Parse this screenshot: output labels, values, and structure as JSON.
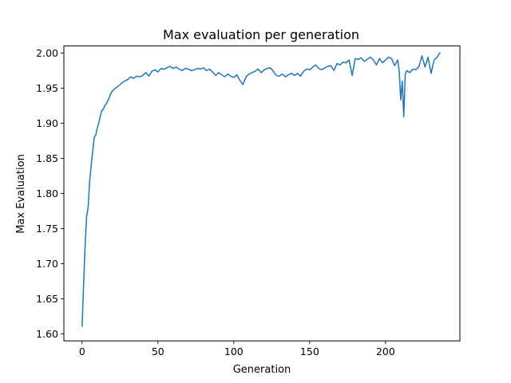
{
  "chart_data": {
    "type": "line",
    "title": "Max evaluation per generation",
    "xlabel": "Generation",
    "ylabel": "Max Evaluation",
    "xlim": [
      -12,
      249
    ],
    "ylim": [
      1.59,
      2.01
    ],
    "xticks": [
      0,
      50,
      100,
      150,
      200
    ],
    "xtick_labels": [
      "0",
      "50",
      "100",
      "150",
      "200"
    ],
    "yticks": [
      1.6,
      1.65,
      1.7,
      1.75,
      1.8,
      1.85,
      1.9,
      1.95,
      2.0
    ],
    "ytick_labels": [
      "1.60",
      "1.65",
      "1.70",
      "1.75",
      "1.80",
      "1.85",
      "1.90",
      "1.95",
      "2.00"
    ],
    "grid": false,
    "legend": "none",
    "series": [
      {
        "color": "#1f77b4",
        "x": [
          0,
          1,
          2,
          3,
          4,
          5,
          6,
          7,
          8,
          9,
          10,
          11,
          12,
          13,
          14,
          15,
          16,
          17,
          18,
          19,
          20,
          22,
          24,
          26,
          28,
          30,
          32,
          34,
          36,
          38,
          40,
          42,
          44,
          46,
          48,
          50,
          52,
          54,
          56,
          58,
          60,
          62,
          64,
          66,
          68,
          70,
          72,
          74,
          76,
          78,
          80,
          82,
          84,
          86,
          88,
          90,
          92,
          94,
          96,
          98,
          100,
          102,
          104,
          106,
          108,
          110,
          112,
          114,
          116,
          118,
          120,
          122,
          124,
          126,
          128,
          130,
          132,
          134,
          136,
          138,
          140,
          142,
          144,
          146,
          148,
          150,
          152,
          154,
          156,
          158,
          160,
          162,
          164,
          166,
          168,
          170,
          172,
          174,
          176,
          178,
          180,
          182,
          184,
          186,
          188,
          190,
          192,
          194,
          196,
          198,
          200,
          202,
          204,
          206,
          208,
          209,
          210,
          211,
          212,
          213,
          214,
          216,
          218,
          220,
          222,
          224,
          226,
          228,
          230,
          232,
          234,
          236
        ],
        "y": [
          1.61,
          1.67,
          1.725,
          1.768,
          1.78,
          1.818,
          1.84,
          1.86,
          1.88,
          1.883,
          1.893,
          1.9,
          1.91,
          1.918,
          1.92,
          1.925,
          1.928,
          1.932,
          1.937,
          1.943,
          1.946,
          1.95,
          1.953,
          1.957,
          1.96,
          1.962,
          1.966,
          1.964,
          1.967,
          1.966,
          1.968,
          1.972,
          1.967,
          1.974,
          1.976,
          1.973,
          1.978,
          1.977,
          1.979,
          1.981,
          1.978,
          1.98,
          1.977,
          1.975,
          1.978,
          1.977,
          1.975,
          1.976,
          1.978,
          1.977,
          1.979,
          1.975,
          1.977,
          1.973,
          1.968,
          1.972,
          1.969,
          1.966,
          1.97,
          1.967,
          1.965,
          1.969,
          1.961,
          1.955,
          1.966,
          1.97,
          1.972,
          1.974,
          1.977,
          1.972,
          1.976,
          1.978,
          1.979,
          1.974,
          1.968,
          1.967,
          1.97,
          1.966,
          1.969,
          1.971,
          1.968,
          1.971,
          1.967,
          1.974,
          1.977,
          1.976,
          1.98,
          1.983,
          1.978,
          1.976,
          1.979,
          1.981,
          1.982,
          1.975,
          1.985,
          1.983,
          1.987,
          1.986,
          1.99,
          1.968,
          1.992,
          1.991,
          1.993,
          1.988,
          1.991,
          1.994,
          1.99,
          1.983,
          1.992,
          1.986,
          1.99,
          1.994,
          1.992,
          1.982,
          1.99,
          1.975,
          1.933,
          1.96,
          1.909,
          1.97,
          1.975,
          1.972,
          1.977,
          1.976,
          1.981,
          1.996,
          1.98,
          1.994,
          1.971,
          1.99,
          1.994,
          2.001
        ]
      }
    ]
  }
}
